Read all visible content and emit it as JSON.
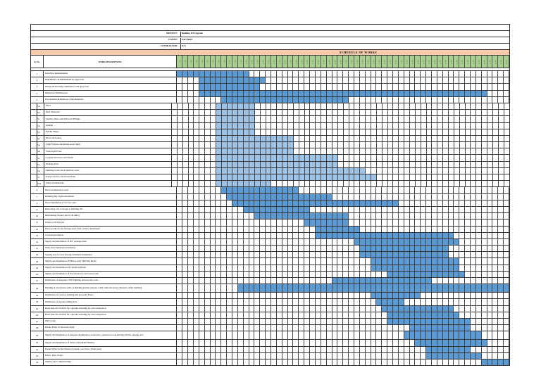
{
  "header": {
    "project_label": "PROJECT:",
    "project_value": "Building 110 Upgrade",
    "client_label": "CLIENT:",
    "client_value": "FACTROS",
    "contractor_label": "CONTRACTOR:",
    "contractor_value": "ICA",
    "schedule_title": "SCHEDULE OF WORKS",
    "col_sno": "Sr. No.",
    "col_work": "WORK DESCRIPTIONS",
    "day_count": 60,
    "day_label": "Day"
  },
  "colors": {
    "bar_main": "#5b9bd5",
    "bar_sub": "#9dc3e6",
    "day_header": "#a9d08e",
    "schedule_band": "#f8cbad"
  },
  "chart_data": {
    "type": "gantt",
    "title": "SCHEDULE OF WORKS",
    "columns": 60,
    "tasks": [
      {
        "no": "1",
        "name": "Gate Pass Requirements",
        "start": 0,
        "end": 12,
        "style": "main"
      },
      {
        "no": "2",
        "name": "MATERIAL SUBMISSION & Approvals",
        "start": 4,
        "end": 15,
        "style": "main"
      },
      {
        "no": "3",
        "name": "Design & Drawings Submission and approvals",
        "start": 4,
        "end": 14,
        "style": "main"
      },
      {
        "no": "4",
        "name": "Manpower Mobilization",
        "start": 4,
        "end": 55,
        "style": "main"
      },
      {
        "no": "5",
        "name": "Procurement & Delivery of the materials",
        "start": 8,
        "end": 30,
        "style": "main"
      },
      {
        "no": "5.a",
        "name": "fence",
        "start": 8,
        "end": 14,
        "style": "sub"
      },
      {
        "no": "5.b",
        "name": "Duct Materials",
        "start": 8,
        "end": 14,
        "style": "sub"
      },
      {
        "no": "5.c",
        "name": "Sanitary Ware and bathroom Fittings",
        "start": 8,
        "end": 14,
        "style": "sub"
      },
      {
        "no": "5.d",
        "name": "Asphalt",
        "start": 8,
        "end": 14,
        "style": "sub"
      },
      {
        "no": "5.e",
        "name": "Fender Pillars",
        "start": 8,
        "end": 14,
        "style": "sub"
      },
      {
        "no": "5.f",
        "name": "Doors and Gates",
        "start": 8,
        "end": 21,
        "style": "sub"
      },
      {
        "no": "5.g",
        "name": "Light Fixtures (including street light)",
        "start": 8,
        "end": 21,
        "style": "sub"
      },
      {
        "no": "5.h",
        "name": "Street light Poles",
        "start": 8,
        "end": 21,
        "style": "sub"
      },
      {
        "no": "5.i",
        "name": "Carpark Structure and Shades",
        "start": 8,
        "end": 29,
        "style": "sub"
      },
      {
        "no": "5.j",
        "name": "Package Unit",
        "start": 8,
        "end": 29,
        "style": "sub"
      },
      {
        "no": "5.k",
        "name": "Shelving racks and Cantilever racks",
        "start": 8,
        "end": 34,
        "style": "sub"
      },
      {
        "no": "5.l",
        "name": "Post protectors and Guard Rails",
        "start": 8,
        "end": 36,
        "style": "sub"
      },
      {
        "no": "5.m",
        "name": "Paint and Materials",
        "start": 8,
        "end": 17,
        "style": "sub"
      },
      {
        "no": "6",
        "name": "Fence maintenance work",
        "start": 8,
        "end": 21,
        "style": "main"
      },
      {
        "no": "7",
        "name": "Building Bay Light installation",
        "start": 9,
        "end": 27,
        "style": "main"
      },
      {
        "no": "8",
        "name": "Fence installation (7'-0\") for yard",
        "start": 10,
        "end": 39,
        "style": "main"
      },
      {
        "no": "9",
        "name": "Relocation of ice storage to building 221",
        "start": 12,
        "end": 23,
        "style": "main"
      },
      {
        "no": "10",
        "name": "Dismantling Works (ACCU & AHU)",
        "start": 14,
        "end": 30,
        "style": "main"
      },
      {
        "no": "11",
        "name": "Works at OTI Room",
        "start": 23,
        "end": 30,
        "style": "main"
      },
      {
        "no": "12",
        "name": "Fence works for the Storage Area, Pest Control department",
        "start": 25,
        "end": 32,
        "style": "main"
      },
      {
        "no": "13",
        "name": "Carpark Installation",
        "start": 25,
        "end": 49,
        "style": "main"
      },
      {
        "no": "14",
        "name": "Supply and installation of 30T package units",
        "start": 32,
        "end": 50,
        "style": "main"
      },
      {
        "no": "15",
        "name": "Work Area Sunshade installation",
        "start": 33,
        "end": 48,
        "style": "main"
      },
      {
        "no": "16",
        "name": "Staging area for Gas Storage Sunshade installation",
        "start": 33,
        "end": 48,
        "style": "main"
      },
      {
        "no": "18",
        "name": "Supply and Installation Of Heavy-duty Shelving Racks",
        "start": 35,
        "end": 50,
        "style": "main"
      },
      {
        "no": "19",
        "name": "Supply and Installation Of Cantilever Racks",
        "start": 35,
        "end": 50,
        "style": "main"
      },
      {
        "no": "20",
        "name": "Supply and Installation of Post Protectors and Guard rails",
        "start": 38,
        "end": 51,
        "style": "main"
      },
      {
        "no": "21",
        "name": "Installation of Adequate LED Lighting between the racks",
        "start": 28,
        "end": 45,
        "style": "main"
      },
      {
        "no": "22",
        "name": "Painting of all exterior walls of building and the exterior walls of the Inventory intensive office building",
        "start": 11,
        "end": 59,
        "style": "main"
      },
      {
        "no": "23",
        "name": "Installation of Gate for existing and proposed Fence",
        "start": 35,
        "end": 43,
        "style": "main"
      },
      {
        "no": "24",
        "name": "Installation of manual sliding door",
        "start": 36,
        "end": 40,
        "style": "main"
      },
      {
        "no": "25",
        "name": "Road base 20 cm thick for carparks including lay and compaction",
        "start": 37,
        "end": 49,
        "style": "main"
      },
      {
        "no": "26",
        "name": "Road base 20 cm thick for carparks including lay and compaction",
        "start": 38,
        "end": 50,
        "style": "main"
      },
      {
        "no": "27",
        "name": "OSS works",
        "start": 38,
        "end": 52,
        "style": "main"
      },
      {
        "no": "28",
        "name": "Fender Pillar for the fence light",
        "start": 42,
        "end": 52,
        "style": "main"
      },
      {
        "no": "29",
        "name": "Supply and Installation of adequate illumination around the constructed road,fencing and the parking area",
        "start": 41,
        "end": 54,
        "style": "main"
      },
      {
        "no": "30",
        "name": "Supply and Installation of latrine unit (Male/Female)",
        "start": 43,
        "end": 55,
        "style": "main"
      },
      {
        "no": "31",
        "name": "Fender Pillar for the Shades (carpark, Gas Store, Wash Area)",
        "start": 45,
        "end": 52,
        "style": "main"
      },
      {
        "no": "32",
        "name": "HVAC Duct Works",
        "start": 45,
        "end": 54,
        "style": "main"
      },
      {
        "no": "33",
        "name": "Testing and Commissioning",
        "start": 55,
        "end": 59,
        "style": "main"
      }
    ]
  }
}
